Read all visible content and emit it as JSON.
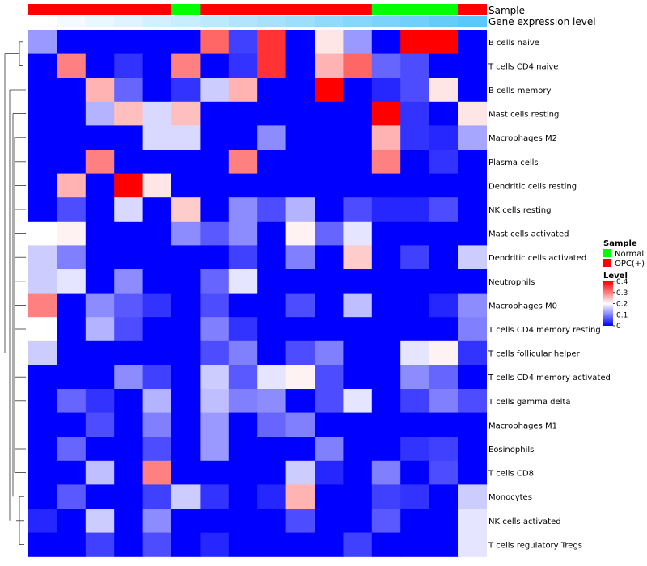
{
  "chart_data": {
    "type": "heatmap",
    "title": "",
    "annotation_tracks": [
      {
        "name": "Sample",
        "values": [
          "OPC(+)",
          "OPC(+)",
          "OPC(+)",
          "OPC(+)",
          "OPC(+)",
          "Normal",
          "OPC(+)",
          "OPC(+)",
          "OPC(+)",
          "OPC(+)",
          "OPC(+)",
          "OPC(+)",
          "Normal",
          "Normal",
          "Normal",
          "OPC(+)"
        ]
      },
      {
        "name": "Gene expression level",
        "values": [
          0,
          1,
          2,
          3,
          4,
          5,
          6,
          7,
          8,
          9,
          10,
          11,
          12,
          13,
          14,
          15
        ]
      }
    ],
    "rows": [
      "B cells naive",
      "T cells CD4 naive",
      "B cells memory",
      "Mast cells resting",
      "Macrophages M2",
      "Plasma cells",
      "Dendritic cells resting",
      "NK cells resting",
      "Mast cells activated",
      "Dendritic cells activated",
      "Neutrophils",
      "Macrophages M0",
      "T cells CD4 memory resting",
      "T cells follicular helper",
      "T cells CD4 memory activated",
      "T cells gamma delta",
      "Macrophages M1",
      "Eosinophils",
      "T cells CD8",
      "Monocytes",
      "NK cells activated",
      "T cells regulatory  Tregs"
    ],
    "columns": 16,
    "values": [
      [
        0.12,
        0,
        0,
        0,
        0,
        0,
        0.32,
        0.05,
        0.36,
        0,
        0.22,
        0.12,
        0,
        0.4,
        0.4,
        0
      ],
      [
        0,
        0.3,
        0,
        0.04,
        0,
        0.3,
        0,
        0.04,
        0.36,
        0,
        0.26,
        0.32,
        0.08,
        0.06,
        0,
        0
      ],
      [
        0,
        0,
        0.26,
        0.08,
        0,
        0.04,
        0.16,
        0.26,
        0,
        0,
        0.4,
        0,
        0.03,
        0.06,
        0.22,
        0
      ],
      [
        0,
        0,
        0.14,
        0.25,
        0.17,
        0.25,
        0,
        0,
        0,
        0,
        0,
        0,
        0.4,
        0.04,
        0,
        0.22
      ],
      [
        0,
        0,
        0,
        0,
        0.17,
        0.17,
        0,
        0,
        0.11,
        0,
        0,
        0,
        0.26,
        0.04,
        0.03,
        0.13
      ],
      [
        0,
        0,
        0.3,
        0,
        0,
        0,
        0,
        0.3,
        0,
        0,
        0,
        0,
        0.3,
        0,
        0.04,
        0
      ],
      [
        0,
        0.26,
        0,
        0.4,
        0.22,
        0,
        0,
        0,
        0,
        0,
        0,
        0,
        0,
        0,
        0,
        0
      ],
      [
        0,
        0.06,
        0,
        0.17,
        0,
        0.24,
        0,
        0.11,
        0.06,
        0.14,
        0,
        0.06,
        0.03,
        0.03,
        0.06,
        0
      ],
      [
        0.2,
        0.21,
        0,
        0,
        0,
        0.11,
        0.07,
        0.11,
        0,
        0.21,
        0.08,
        0.18,
        0,
        0,
        0,
        0
      ],
      [
        0.16,
        0.1,
        0,
        0,
        0,
        0,
        0,
        0.05,
        0,
        0.1,
        0,
        0.24,
        0,
        0.05,
        0,
        0.16
      ],
      [
        0.16,
        0.18,
        0,
        0.11,
        0,
        0,
        0.08,
        0.18,
        0,
        0,
        0,
        0,
        0,
        0,
        0,
        0
      ],
      [
        0.3,
        0,
        0.11,
        0.07,
        0.04,
        0,
        0.06,
        0,
        0,
        0.06,
        0,
        0.15,
        0,
        0,
        0.03,
        0.11
      ],
      [
        0.2,
        0,
        0.14,
        0.06,
        0,
        0,
        0.1,
        0.04,
        0,
        0,
        0,
        0,
        0,
        0,
        0,
        0.1
      ],
      [
        0.16,
        0,
        0,
        0,
        0,
        0,
        0.06,
        0.1,
        0,
        0.06,
        0.1,
        0,
        0,
        0.18,
        0.21,
        0.04
      ],
      [
        0,
        0,
        0,
        0.11,
        0.05,
        0,
        0.16,
        0.07,
        0.18,
        0.21,
        0.06,
        0,
        0,
        0.11,
        0.08,
        0
      ],
      [
        0,
        0.08,
        0.04,
        0,
        0.14,
        0,
        0.15,
        0.1,
        0.11,
        0,
        0.06,
        0.18,
        0,
        0.05,
        0.1,
        0.06
      ],
      [
        0,
        0,
        0.06,
        0,
        0.1,
        0,
        0.12,
        0,
        0.08,
        0.1,
        0,
        0,
        0,
        0,
        0,
        0
      ],
      [
        0,
        0.08,
        0,
        0,
        0.06,
        0,
        0.12,
        0,
        0,
        0,
        0.1,
        0,
        0,
        0.04,
        0.05,
        0
      ],
      [
        0,
        0,
        0.15,
        0,
        0.3,
        0,
        0,
        0,
        0,
        0.16,
        0.03,
        0,
        0.1,
        0,
        0.06,
        0
      ],
      [
        0,
        0.07,
        0,
        0,
        0.05,
        0.16,
        0.04,
        0,
        0.03,
        0.26,
        0,
        0,
        0.05,
        0.04,
        0,
        0.16
      ],
      [
        0.03,
        0,
        0.16,
        0,
        0.11,
        0,
        0,
        0,
        0,
        0.06,
        0,
        0,
        0.07,
        0,
        0,
        0.18
      ],
      [
        0,
        0,
        0.05,
        0,
        0.06,
        0,
        0.03,
        0,
        0,
        0,
        0,
        0.05,
        0,
        0,
        0,
        0.18
      ]
    ],
    "row_dendrogram": true,
    "legends": [
      {
        "title": "Sample",
        "entries": [
          {
            "label": "Normal",
            "color": "#00ff00"
          },
          {
            "label": "OPC(+)",
            "color": "#ff0000"
          }
        ]
      },
      {
        "title": "Level",
        "range": [
          0,
          0.4
        ],
        "ticks": [
          "0.4",
          "0.3",
          "0.2",
          "0.1",
          "0"
        ],
        "tick_values": [
          0.4,
          0.3,
          0.2,
          0.1,
          0
        ]
      }
    ],
    "legend_placement": "right",
    "colors": {
      "low": "#0000ff",
      "mid": "#ffffff",
      "high": "#ff0000",
      "normal": "#00ff00",
      "opc": "#ff0000",
      "gene_low": "#ffffff",
      "gene_high": "#5ac8fa"
    }
  }
}
